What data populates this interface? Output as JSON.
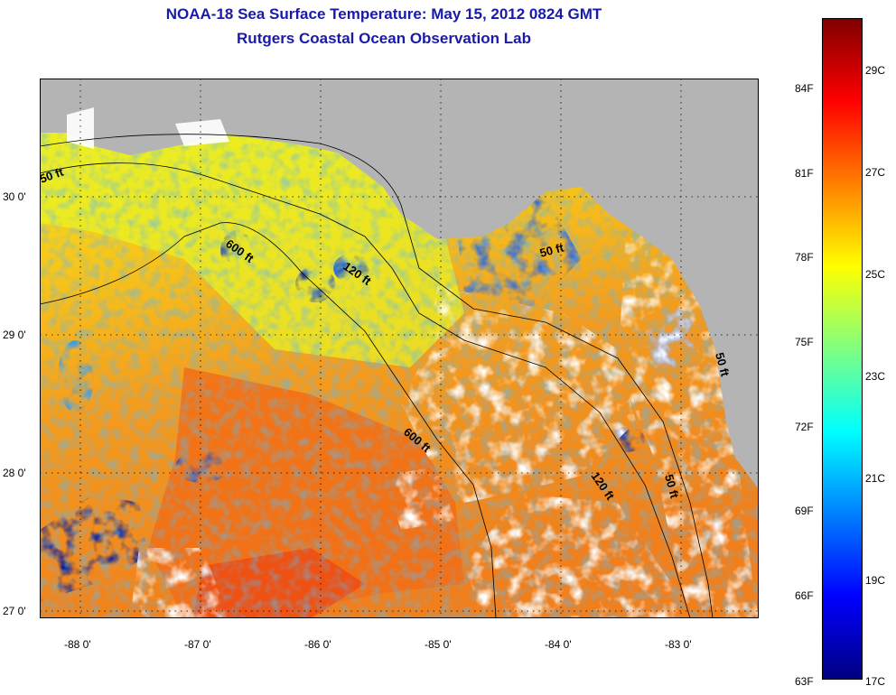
{
  "title": {
    "line1": "NOAA-18 Sea Surface Temperature:  May 15, 2012 0824 GMT",
    "line2": "Rutgers Coastal Ocean Observation Lab"
  },
  "map": {
    "lat_labels": [
      "30 0'",
      "29 0'",
      "28 0'",
      "27 0'"
    ],
    "lon_labels": [
      "-88 0'",
      "-87 0'",
      "-86 0'",
      "-85 0'",
      "-84 0'",
      "-83 0'"
    ],
    "contour_labels": [
      "50 ft",
      "600 ft",
      "120 ft",
      "50 ft",
      "600 ft",
      "120 ft",
      "50 ft",
      "50 ft"
    ],
    "land_color": "#b4b4b4",
    "cloud_color": "#ffffff"
  },
  "colorbar": {
    "fahrenheit_labels": [
      "84F",
      "81F",
      "78F",
      "75F",
      "72F",
      "69F",
      "66F",
      "63F"
    ],
    "celsius_labels": [
      "29C",
      "27C",
      "25C",
      "23C",
      "21C",
      "19C",
      "17C"
    ],
    "range_c": [
      17,
      30.5
    ],
    "colors": [
      "#800000",
      "#ff0000",
      "#ff8000",
      "#ffff00",
      "#80ff80",
      "#00ffff",
      "#0080ff",
      "#0000ff",
      "#000080"
    ]
  }
}
